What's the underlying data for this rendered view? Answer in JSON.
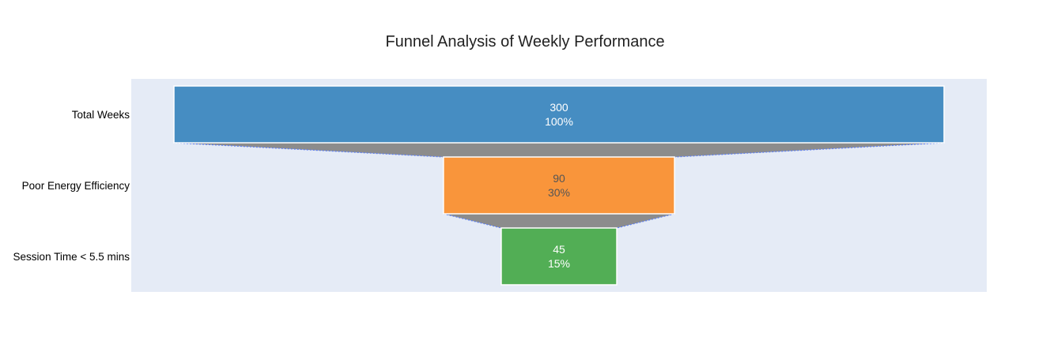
{
  "chart_data": {
    "type": "funnel",
    "title": "Funnel Analysis of Weekly Performance",
    "categories": [
      "Total Weeks",
      "Poor Energy Efficiency",
      "Session Time < 5.5 mins"
    ],
    "values": [
      300,
      90,
      45
    ],
    "percent_labels": [
      "100%",
      "30%",
      "15%"
    ],
    "colors": [
      "#468dc2",
      "#f9953b",
      "#52ae55"
    ],
    "label_colors": [
      "#ffffff",
      "#555555",
      "#ffffff"
    ],
    "connector_color": "#8c8c8c",
    "connector_line_color": "#5b7ef5",
    "plot_background": "#e5ebf6",
    "grid": false,
    "legend": "none"
  }
}
